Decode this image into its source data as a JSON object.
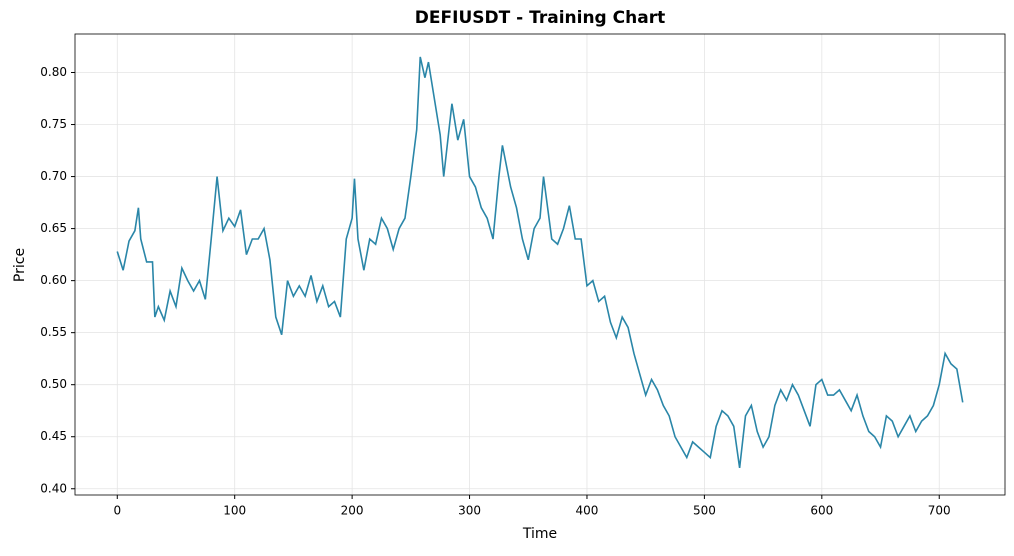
{
  "chart_data": {
    "type": "line",
    "title": "DEFIUSDT - Training Chart",
    "x_label": "Time",
    "y_label": "Price",
    "x": [
      0,
      5,
      10,
      15,
      18,
      20,
      25,
      30,
      32,
      35,
      40,
      45,
      50,
      55,
      60,
      65,
      70,
      75,
      80,
      85,
      90,
      95,
      100,
      105,
      110,
      115,
      120,
      125,
      130,
      135,
      140,
      145,
      150,
      155,
      160,
      165,
      170,
      175,
      180,
      185,
      190,
      195,
      200,
      202,
      205,
      210,
      215,
      220,
      225,
      230,
      235,
      240,
      245,
      250,
      255,
      258,
      262,
      265,
      270,
      275,
      278,
      285,
      290,
      295,
      300,
      305,
      310,
      315,
      320,
      325,
      328,
      335,
      340,
      345,
      350,
      355,
      360,
      363,
      370,
      375,
      380,
      385,
      390,
      395,
      400,
      405,
      410,
      415,
      420,
      425,
      430,
      435,
      440,
      445,
      450,
      455,
      460,
      465,
      470,
      475,
      480,
      485,
      490,
      495,
      500,
      505,
      510,
      515,
      520,
      525,
      530,
      535,
      540,
      545,
      550,
      555,
      560,
      565,
      570,
      575,
      580,
      585,
      590,
      595,
      600,
      605,
      610,
      615,
      620,
      625,
      630,
      635,
      640,
      645,
      650,
      655,
      660,
      665,
      670,
      675,
      680,
      685,
      690,
      695,
      700,
      705,
      710,
      715,
      720
    ],
    "series": [
      {
        "name": "DEFIUSDT",
        "color": "#2a86a8",
        "values": [
          0.628,
          0.61,
          0.638,
          0.648,
          0.67,
          0.64,
          0.618,
          0.618,
          0.565,
          0.575,
          0.562,
          0.59,
          0.575,
          0.612,
          0.6,
          0.59,
          0.6,
          0.582,
          0.64,
          0.7,
          0.648,
          0.66,
          0.652,
          0.668,
          0.625,
          0.64,
          0.64,
          0.65,
          0.62,
          0.565,
          0.548,
          0.6,
          0.585,
          0.595,
          0.585,
          0.605,
          0.58,
          0.595,
          0.575,
          0.58,
          0.565,
          0.64,
          0.66,
          0.698,
          0.64,
          0.61,
          0.64,
          0.635,
          0.66,
          0.65,
          0.63,
          0.65,
          0.66,
          0.7,
          0.745,
          0.815,
          0.795,
          0.81,
          0.775,
          0.74,
          0.7,
          0.77,
          0.735,
          0.755,
          0.7,
          0.69,
          0.67,
          0.66,
          0.64,
          0.7,
          0.73,
          0.69,
          0.67,
          0.64,
          0.62,
          0.65,
          0.66,
          0.7,
          0.64,
          0.635,
          0.65,
          0.672,
          0.64,
          0.64,
          0.595,
          0.6,
          0.58,
          0.585,
          0.56,
          0.545,
          0.565,
          0.555,
          0.53,
          0.51,
          0.49,
          0.505,
          0.495,
          0.48,
          0.47,
          0.45,
          0.44,
          0.43,
          0.445,
          0.44,
          0.435,
          0.43,
          0.46,
          0.475,
          0.47,
          0.46,
          0.42,
          0.47,
          0.48,
          0.455,
          0.44,
          0.45,
          0.48,
          0.495,
          0.485,
          0.5,
          0.49,
          0.475,
          0.46,
          0.5,
          0.505,
          0.49,
          0.49,
          0.495,
          0.485,
          0.475,
          0.49,
          0.47,
          0.455,
          0.45,
          0.44,
          0.47,
          0.465,
          0.45,
          0.46,
          0.47,
          0.455,
          0.465,
          0.47,
          0.48,
          0.5,
          0.53,
          0.52,
          0.515,
          0.483
        ]
      }
    ],
    "xlim": [
      -36,
      756
    ],
    "xticks": [
      0,
      100,
      200,
      300,
      400,
      500,
      600,
      700
    ],
    "ylim": [
      0.394,
      0.837
    ],
    "yticks": [
      {
        "value": 0.4,
        "label": "0.40"
      },
      {
        "value": 0.45,
        "label": "0.45"
      },
      {
        "value": 0.5,
        "label": "0.50"
      },
      {
        "value": 0.55,
        "label": "0.55"
      },
      {
        "value": 0.6,
        "label": "0.60"
      },
      {
        "value": 0.65,
        "label": "0.65"
      },
      {
        "value": 0.7,
        "label": "0.70"
      },
      {
        "value": 0.75,
        "label": "0.75"
      },
      {
        "value": 0.8,
        "label": "0.80"
      }
    ],
    "grid": true
  }
}
